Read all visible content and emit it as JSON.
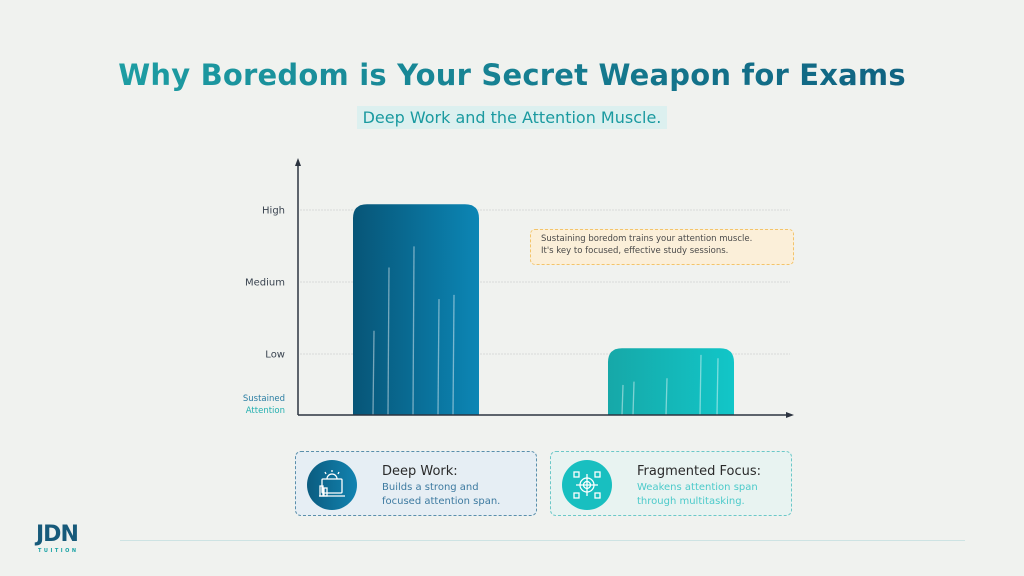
{
  "title": "Why Boredom is Your Secret Weapon for Exams",
  "subtitle": "Deep Work and the Attention Muscle.",
  "chart_data": {
    "type": "bar",
    "categories": [
      "Deep Work",
      "Fragmented Focus"
    ],
    "values": [
      3.08,
      1.08
    ],
    "ylabel": [
      "Sustained",
      "Attention"
    ],
    "yticks": [
      {
        "value": 1,
        "label": "Low"
      },
      {
        "value": 2,
        "label": "Medium"
      },
      {
        "value": 3,
        "label": "High"
      }
    ],
    "ylim": [
      0,
      3.6
    ],
    "grid": true,
    "colors": {
      "Deep Work": [
        "#075577",
        "#0c86b5"
      ],
      "Fragmented Focus": [
        "#16a8a8",
        "#12c6c8"
      ]
    },
    "annotation": [
      "Sustaining boredom trains your attention muscle.",
      "It's key to focused, effective study sessions."
    ]
  },
  "cards": [
    {
      "title": "Deep Work:",
      "desc": [
        "Builds a strong and",
        "focused attention span."
      ],
      "icon": "desk-computer-icon"
    },
    {
      "title": "Fragmented Focus:",
      "desc": [
        "Weakens attention span",
        "through multitasking."
      ],
      "icon": "target-crosshair-icon"
    }
  ],
  "logo": {
    "main": "JDN",
    "sub": "TUITION"
  }
}
